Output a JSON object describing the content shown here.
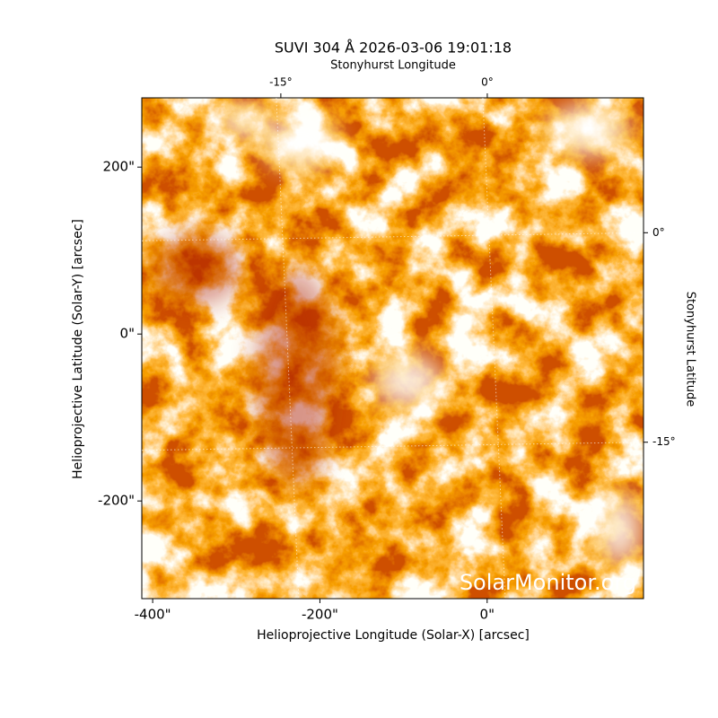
{
  "chart_data": {
    "type": "image",
    "title": "SUVI 304 Å 2026-03-06 19:01:18",
    "xlabel": "Helioprojective Longitude (Solar-X) [arcsec]",
    "ylabel": "Helioprojective Latitude (Solar-Y) [arcsec]",
    "x2label": "Stonyhurst Longitude",
    "y2label": "Stonyhurst Latitude",
    "watermark": "SolarMonitor.org",
    "xlim": [
      -413,
      187
    ],
    "ylim": [
      -317,
      283
    ],
    "xticks": [
      {
        "value": -400,
        "label": "-400\""
      },
      {
        "value": -200,
        "label": "-200\""
      },
      {
        "value": 0,
        "label": "0\""
      }
    ],
    "yticks": [
      {
        "value": -200,
        "label": "-200\""
      },
      {
        "value": 0,
        "label": "0\""
      },
      {
        "value": 200,
        "label": "200\""
      }
    ],
    "x2lim": [
      -25.1,
      11.35
    ],
    "x2ticks": [
      {
        "value": -15,
        "label": "-15°"
      },
      {
        "value": 0,
        "label": "0°"
      }
    ],
    "y2lim": [
      -26.2,
      9.66
    ],
    "y2ticks": [
      {
        "value": -15,
        "label": "-15°"
      },
      {
        "value": 0,
        "label": "0°"
      }
    ],
    "grid": true
  }
}
